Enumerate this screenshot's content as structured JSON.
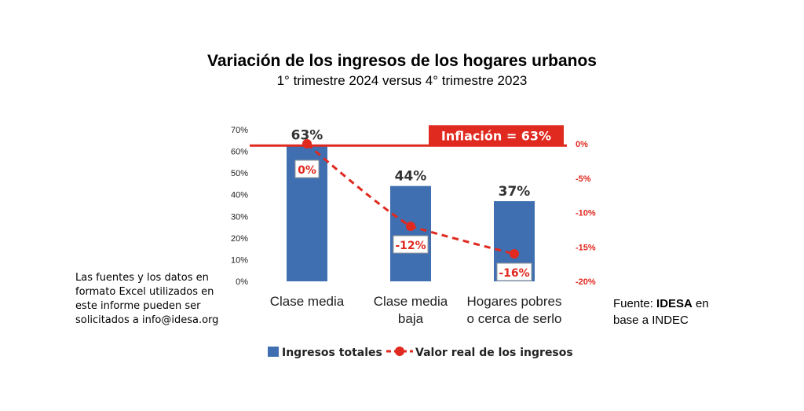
{
  "chart_data": {
    "type": "bar",
    "title": "Variación de los ingresos de los hogares urbanos",
    "subtitle": "1° trimestre 2024 versus 4° trimestre 2023",
    "categories": [
      [
        "Clase media"
      ],
      [
        "Clase media",
        "baja"
      ],
      [
        "Hogares pobres",
        "o cerca de serlo"
      ]
    ],
    "series": [
      {
        "name": "Ingresos totales",
        "type": "bar",
        "axis": "left",
        "values": [
          63,
          44,
          37
        ],
        "labels": [
          "63%",
          "44%",
          "37%"
        ],
        "color": "#3f6fb0"
      },
      {
        "name": "Valor real de los ingresos",
        "type": "line",
        "axis": "right",
        "values": [
          0,
          -12,
          -16
        ],
        "labels": [
          "0%",
          "-12%",
          "-16%"
        ],
        "color": "#e0291f",
        "line_style": "dashed"
      }
    ],
    "left_axis": {
      "ylim": [
        0,
        70
      ],
      "ticks": [
        0,
        10,
        20,
        30,
        40,
        50,
        60,
        70
      ],
      "tick_labels": [
        "0%",
        "10%",
        "20%",
        "30%",
        "40%",
        "50%",
        "60%",
        "70%"
      ]
    },
    "right_axis": {
      "ylim": [
        -20,
        0
      ],
      "ticks": [
        0,
        -5,
        -10,
        -15,
        -20
      ],
      "tick_labels": [
        "0%",
        "-5%",
        "-10%",
        "-15%",
        "-20%"
      ],
      "color": "#e0291f"
    },
    "reference_line": {
      "value": 63,
      "axis": "left",
      "label": "Inflación = 63%",
      "color": "#e0291f"
    },
    "legend_position": "bottom",
    "grid": false
  },
  "note": "Las fuentes y los datos en formato Excel utilizados en este informe pueden ser solicitados a info@idesa.org",
  "source": {
    "prefix": "Fuente: ",
    "org": "IDESA",
    "rest": " en base a INDEC"
  }
}
